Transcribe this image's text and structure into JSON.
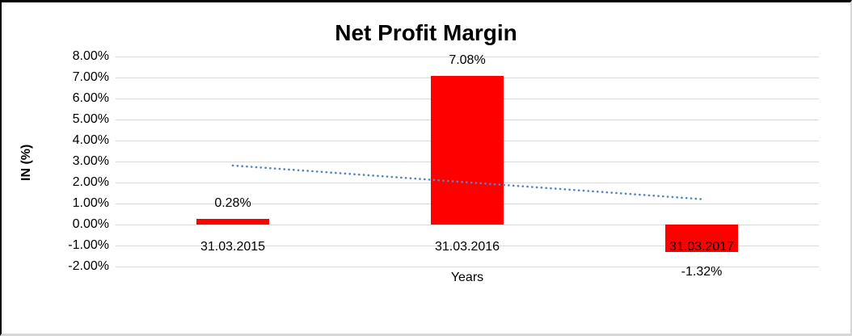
{
  "chart_data": {
    "type": "bar",
    "title": "Net Profit Margin",
    "xlabel": "Years",
    "ylabel": "IN (%)",
    "categories": [
      "31.03.2015",
      "31.03.2016",
      "31.03.2017"
    ],
    "values": [
      0.28,
      7.08,
      -1.32
    ],
    "bar_labels": [
      "0.28%",
      "7.08%",
      "-1.32%"
    ],
    "bar_color": "#ff0000",
    "y_ticks": [
      "8.00%",
      "7.00%",
      "6.00%",
      "5.00%",
      "4.00%",
      "3.00%",
      "2.00%",
      "1.00%",
      "0.00%",
      "-1.00%",
      "-2.00%"
    ],
    "y_tick_values": [
      8,
      7,
      6,
      5,
      4,
      3,
      2,
      1,
      0,
      -1,
      -2
    ],
    "ylim": [
      -2,
      8
    ],
    "grid": true,
    "gridline_color": "#d9d9d9",
    "legend": "none",
    "trendline": {
      "style": "dotted",
      "color": "#4f86c6",
      "start_value": 2.81,
      "end_value": 1.21
    }
  }
}
